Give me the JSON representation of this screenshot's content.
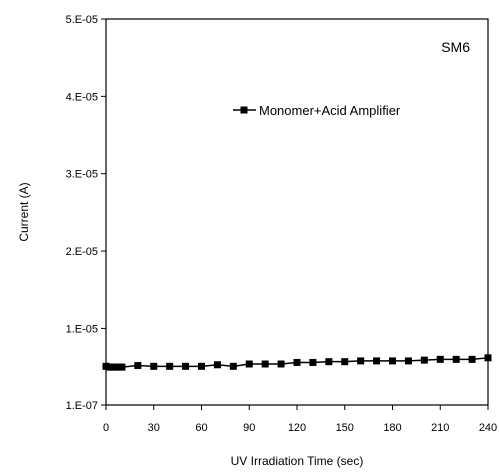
{
  "chart_data": {
    "type": "line",
    "title": "",
    "xlabel": "UV Irradiation Time (sec)",
    "ylabel": "Current (A)",
    "xlim": [
      0,
      240
    ],
    "ylim": [
      1e-07,
      5e-05
    ],
    "x_ticks": [
      0,
      30,
      60,
      90,
      120,
      150,
      180,
      210,
      240
    ],
    "x_tick_labels": [
      "0",
      "30",
      "60",
      "90",
      "120",
      "150",
      "180",
      "210",
      "240"
    ],
    "y_ticks": [
      1e-07,
      1e-05,
      2e-05,
      3e-05,
      4e-05,
      5e-05
    ],
    "y_tick_labels": [
      "1.E-07",
      "1.E-05",
      "2.E-05",
      "3.E-05",
      "4.E-05",
      "5.E-05"
    ],
    "grid": false,
    "legend_position": "upper-right",
    "annotation": "SM6",
    "series": [
      {
        "name": "Monomer+Acid Amplifier",
        "marker": "square",
        "color": "#000000",
        "x": [
          0,
          2,
          4,
          6,
          8,
          10,
          20,
          30,
          40,
          50,
          60,
          70,
          80,
          90,
          100,
          110,
          120,
          130,
          140,
          150,
          160,
          170,
          180,
          190,
          200,
          210,
          220,
          230,
          240
        ],
        "y": [
          5.1e-06,
          5e-06,
          5e-06,
          5e-06,
          5e-06,
          5e-06,
          5.2e-06,
          5.1e-06,
          5.1e-06,
          5.1e-06,
          5.1e-06,
          5.3e-06,
          5.1e-06,
          5.4e-06,
          5.4e-06,
          5.4e-06,
          5.6e-06,
          5.6e-06,
          5.7e-06,
          5.7e-06,
          5.8e-06,
          5.8e-06,
          5.8e-06,
          5.8e-06,
          5.9e-06,
          6e-06,
          6e-06,
          6e-06,
          6.2e-06
        ]
      }
    ]
  }
}
